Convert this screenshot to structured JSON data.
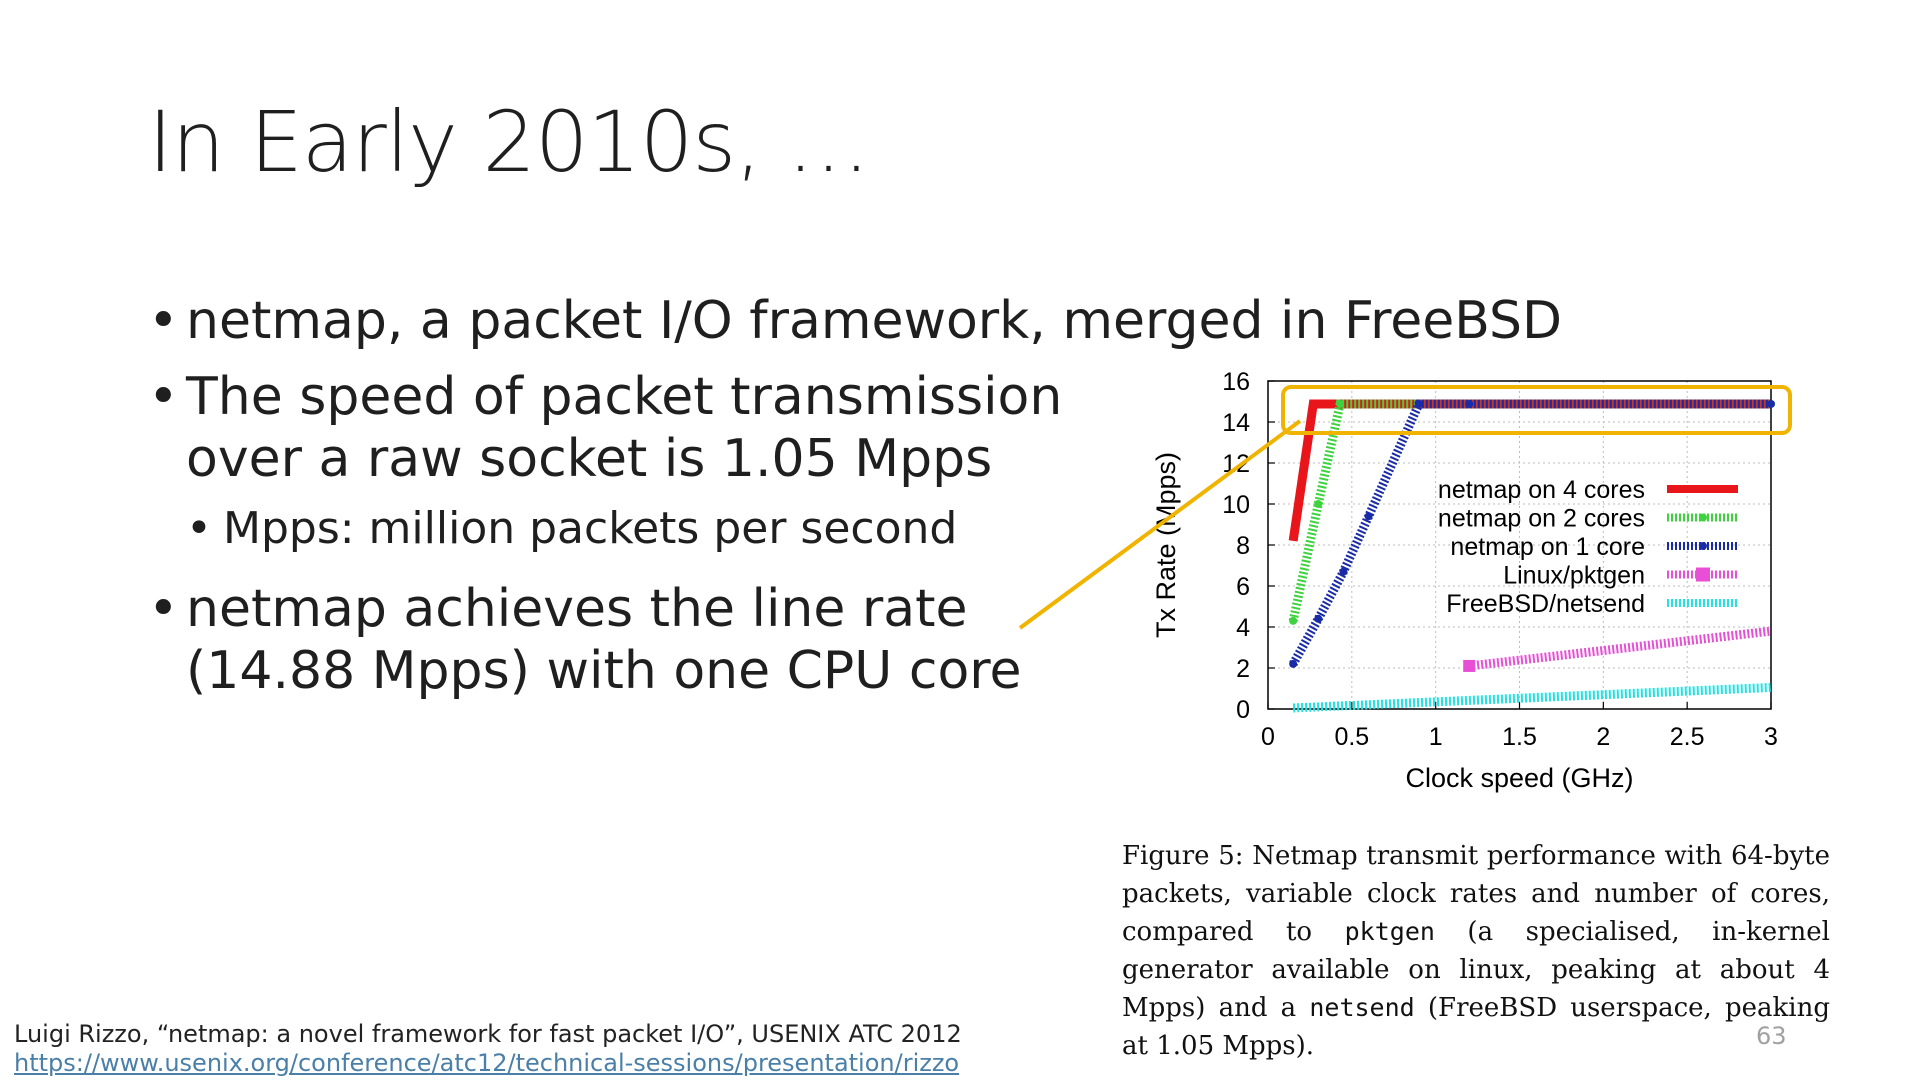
{
  "slide": {
    "title": "In Early 2010s, …",
    "bullets": {
      "b1": "netmap, a packet I/O framework, merged in FreeBSD",
      "b2_line1": "The speed of packet transmission",
      "b2_line2": "over a raw socket is 1.05  Mpps",
      "sub1": "Mpps: million packets per second",
      "b3_line1": "netmap achieves the line rate",
      "b3_line2": "(14.88 Mpps) with one CPU core"
    },
    "caption": {
      "part1": "Figure 5:  Netmap transmit performance with 64-byte packets, variable clock rates and number of cores, compared to ",
      "code1": "pktgen",
      "part2": " (a specialised, in-kernel generator available on linux, peaking at about 4 Mpps) and a ",
      "code2": "netsend",
      "part3": " (FreeBSD userspace, peaking at 1.05 Mpps)."
    },
    "citation": {
      "text": "Luigi Rizzo, “netmap: a novel framework for fast packet I/O”, USENIX ATC 2012",
      "url": "https://www.usenix.org/conference/atc12/technical-sessions/presentation/rizzo"
    },
    "page_number": "63",
    "highlight_color": "#F0B400"
  },
  "chart_data": {
    "type": "line",
    "xlabel": "Clock speed (GHz)",
    "ylabel": "Tx Rate (Mpps)",
    "xlim": [
      0,
      3
    ],
    "ylim": [
      0,
      16
    ],
    "xticks": [
      "0",
      "0.5",
      "1",
      "1.5",
      "2",
      "2.5",
      "3"
    ],
    "yticks": [
      "0",
      "2",
      "4",
      "6",
      "8",
      "10",
      "12",
      "14",
      "16"
    ],
    "grid": true,
    "legend_position": "center-right",
    "series": [
      {
        "name": "netmap on 4 cores",
        "color": "#E8151B",
        "style": "solid",
        "x": [
          0.15,
          0.27,
          3.0
        ],
        "y": [
          8.2,
          14.88,
          14.88
        ]
      },
      {
        "name": "netmap on 2 cores",
        "color": "#3FD23F",
        "style": "dotted",
        "x": [
          0.15,
          0.3,
          0.43,
          3.0
        ],
        "y": [
          4.3,
          10.0,
          14.88,
          14.88
        ]
      },
      {
        "name": "netmap on 1 core",
        "color": "#1A2BA8",
        "style": "dotted",
        "x": [
          0.15,
          0.3,
          0.45,
          0.6,
          0.9,
          1.2,
          3.0
        ],
        "y": [
          2.2,
          4.4,
          6.7,
          9.4,
          14.88,
          14.88,
          14.88
        ]
      },
      {
        "name": "Linux/pktgen",
        "color": "#E84FD6",
        "style": "dotted",
        "x": [
          1.2,
          3.0
        ],
        "y": [
          2.1,
          3.8
        ]
      },
      {
        "name": "FreeBSD/netsend",
        "color": "#22E3E3",
        "style": "dotted",
        "x": [
          0.15,
          3.0
        ],
        "y": [
          0.05,
          1.05
        ]
      }
    ]
  }
}
